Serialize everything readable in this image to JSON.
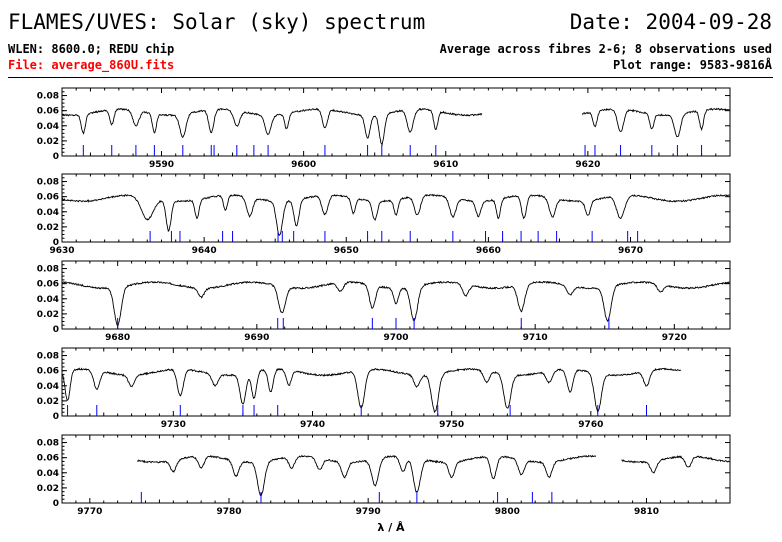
{
  "header": {
    "title": "FLAMES/UVES: Solar (sky) spectrum",
    "date": "Date: 2004-09-28",
    "wlen": "WLEN: 8600.0; REDU chip",
    "file": "File: average_860U.fits",
    "average": "Average across fibres 2-6; 8 observations used",
    "plot_range": "Plot range: 9583-9816Å"
  },
  "colors": {
    "spectrum": "#000000",
    "lines": "#0000ff",
    "file_text": "#ff0000"
  },
  "chart_data": [
    {
      "type": "line",
      "xlim": [
        9583,
        9630
      ],
      "ylim": [
        0,
        0.09
      ],
      "yticks": [
        0,
        0.02,
        0.04,
        0.06,
        0.08
      ],
      "xticks": [
        9590,
        9600,
        9610,
        9620
      ],
      "gaps": [
        [
          9612.6,
          9619.6
        ]
      ],
      "dips": [
        [
          9584.5,
          0.025,
          0.2
        ],
        [
          9586.5,
          0.02,
          0.2
        ],
        [
          9588.2,
          0.02,
          0.3
        ],
        [
          9589.5,
          0.025,
          0.2
        ],
        [
          9591.5,
          0.03,
          0.3
        ],
        [
          9593.5,
          0.03,
          0.25
        ],
        [
          9595.3,
          0.02,
          0.3
        ],
        [
          9597.5,
          0.025,
          0.3
        ],
        [
          9598.8,
          0.02,
          0.2
        ],
        [
          9601.5,
          0.025,
          0.25
        ],
        [
          9604.5,
          0.03,
          0.25
        ],
        [
          9605.5,
          0.04,
          0.25
        ],
        [
          9607.5,
          0.03,
          0.3
        ],
        [
          9609.3,
          0.025,
          0.2
        ],
        [
          9620.5,
          0.02,
          0.2
        ],
        [
          9622.3,
          0.03,
          0.3
        ],
        [
          9624.5,
          0.02,
          0.2
        ],
        [
          9626.3,
          0.03,
          0.3
        ],
        [
          9628,
          0.025,
          0.2
        ]
      ],
      "lines": [
        9584.5,
        9586.5,
        9588.2,
        9589.5,
        9591.5,
        9593.5,
        9593.7,
        9595.3,
        9596.5,
        9597.5,
        9601.5,
        9604.5,
        9605.5,
        9607.5,
        9609.3,
        9619.8,
        9620.5,
        9622.3,
        9624.5,
        9626.3,
        9628
      ]
    },
    {
      "type": "line",
      "xlim": [
        9630,
        9677
      ],
      "ylim": [
        0,
        0.09
      ],
      "yticks": [
        0,
        0.02,
        0.04,
        0.06,
        0.08
      ],
      "xticks": [
        9630,
        9640,
        9650,
        9660,
        9670
      ],
      "gaps": [],
      "dips": [
        [
          9636,
          0.03,
          0.6
        ],
        [
          9637.5,
          0.04,
          0.25
        ],
        [
          9639.5,
          0.025,
          0.2
        ],
        [
          9641.5,
          0.02,
          0.2
        ],
        [
          9643.2,
          0.025,
          0.3
        ],
        [
          9645.3,
          0.045,
          0.3
        ],
        [
          9646.5,
          0.035,
          0.25
        ],
        [
          9648.5,
          0.025,
          0.3
        ],
        [
          9650.5,
          0.02,
          0.2
        ],
        [
          9652,
          0.025,
          0.25
        ],
        [
          9653.5,
          0.02,
          0.2
        ],
        [
          9655,
          0.025,
          0.3
        ],
        [
          9657.5,
          0.025,
          0.3
        ],
        [
          9659.3,
          0.02,
          0.25
        ],
        [
          9660.7,
          0.025,
          0.2
        ],
        [
          9662.5,
          0.03,
          0.25
        ],
        [
          9664.5,
          0.025,
          0.3
        ],
        [
          9667,
          0.02,
          0.25
        ],
        [
          9669.3,
          0.03,
          0.4
        ]
      ],
      "lines": [
        9636.2,
        9637.7,
        9638.3,
        9641.3,
        9642,
        9645.2,
        9645.5,
        9646.3,
        9648.5,
        9651.5,
        9652.5,
        9654.5,
        9657.5,
        9659.8,
        9661,
        9662.3,
        9663.5,
        9664.8,
        9667.3,
        9669.8,
        9670.5
      ]
    },
    {
      "type": "line",
      "xlim": [
        9676,
        9724
      ],
      "ylim": [
        0,
        0.09
      ],
      "yticks": [
        0,
        0.02,
        0.04,
        0.06,
        0.08
      ],
      "xticks": [
        9680,
        9690,
        9700,
        9710,
        9720
      ],
      "gaps": [],
      "dips": [
        [
          9680,
          0.05,
          0.35
        ],
        [
          9686,
          0.012,
          0.3
        ],
        [
          9691.8,
          0.035,
          0.35
        ],
        [
          9696,
          0.012,
          0.3
        ],
        [
          9698.3,
          0.03,
          0.3
        ],
        [
          9700,
          0.02,
          0.25
        ],
        [
          9701.3,
          0.045,
          0.35
        ],
        [
          9705,
          0.015,
          0.3
        ],
        [
          9709,
          0.035,
          0.35
        ],
        [
          9712.5,
          0.012,
          0.3
        ],
        [
          9715.2,
          0.045,
          0.35
        ],
        [
          9719,
          0.01,
          0.3
        ]
      ],
      "lines": [
        9680,
        9691.5,
        9691.9,
        9698.3,
        9700,
        9701.3,
        9709,
        9715.3
      ]
    },
    {
      "type": "line",
      "xlim": [
        9722,
        9770
      ],
      "ylim": [
        0,
        0.09
      ],
      "yticks": [
        0,
        0.02,
        0.04,
        0.06,
        0.08
      ],
      "xticks": [
        9730,
        9740,
        9750,
        9760
      ],
      "gaps": [
        [
          9766.5,
          9770
        ]
      ],
      "dips": [
        [
          9722.4,
          0.04,
          0.25
        ],
        [
          9724.5,
          0.025,
          0.3
        ],
        [
          9727,
          0.015,
          0.3
        ],
        [
          9730.5,
          0.035,
          0.3
        ],
        [
          9733,
          0.015,
          0.3
        ],
        [
          9735,
          0.04,
          0.3
        ],
        [
          9735.8,
          0.035,
          0.25
        ],
        [
          9737,
          0.03,
          0.25
        ],
        [
          9738.3,
          0.02,
          0.25
        ],
        [
          9743.5,
          0.05,
          0.35
        ],
        [
          9747.5,
          0.015,
          0.3
        ],
        [
          9748.8,
          0.05,
          0.35
        ],
        [
          9752.5,
          0.015,
          0.3
        ],
        [
          9754,
          0.045,
          0.35
        ],
        [
          9757,
          0.015,
          0.3
        ],
        [
          9758.5,
          0.03,
          0.3
        ],
        [
          9760.5,
          0.05,
          0.35
        ],
        [
          9764,
          0.02,
          0.3
        ]
      ],
      "lines": [
        9722.4,
        9724.5,
        9730.5,
        9735,
        9735.8,
        9737.5,
        9743.5,
        9749,
        9754.2,
        9760.5,
        9764
      ]
    },
    {
      "type": "line",
      "xlim": [
        9768,
        9816
      ],
      "ylim": [
        0,
        0.09
      ],
      "yticks": [
        0,
        0.02,
        0.04,
        0.06,
        0.08
      ],
      "xticks": [
        9770,
        9780,
        9790,
        9800,
        9810
      ],
      "gaps": [
        [
          9768,
          9773.4
        ],
        [
          9806.4,
          9808.2
        ]
      ],
      "dips": [
        [
          9776,
          0.015,
          0.3
        ],
        [
          9778,
          0.015,
          0.3
        ],
        [
          9780.5,
          0.02,
          0.3
        ],
        [
          9782.3,
          0.045,
          0.35
        ],
        [
          9784.5,
          0.015,
          0.3
        ],
        [
          9786.5,
          0.015,
          0.3
        ],
        [
          9788.3,
          0.02,
          0.3
        ],
        [
          9790.5,
          0.035,
          0.35
        ],
        [
          9792.5,
          0.02,
          0.3
        ],
        [
          9793.5,
          0.045,
          0.35
        ],
        [
          9796,
          0.02,
          0.3
        ],
        [
          9799,
          0.03,
          0.3
        ],
        [
          9801,
          0.02,
          0.3
        ],
        [
          9803,
          0.02,
          0.3
        ],
        [
          9810.5,
          0.015,
          0.3
        ],
        [
          9813,
          0.015,
          0.3
        ]
      ],
      "lines": [
        9773.7,
        9782.3,
        9790.8,
        9793.5,
        9799.3,
        9801.8,
        9803.2
      ]
    }
  ],
  "xlabel": "λ / Å"
}
